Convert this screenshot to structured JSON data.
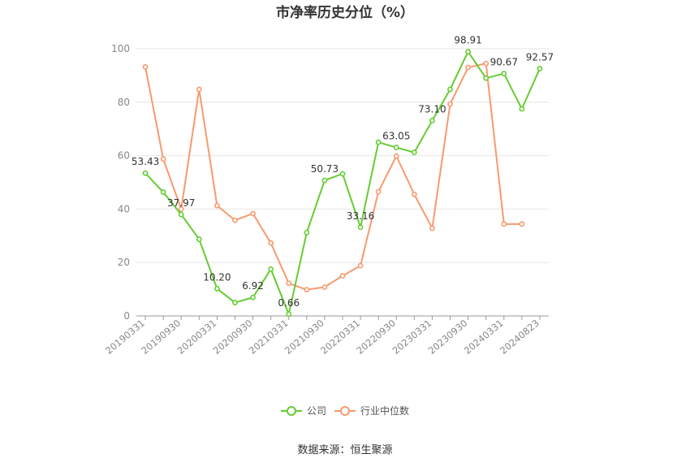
{
  "chart_data": {
    "type": "line",
    "title": "市净率历史分位（%）",
    "xlabel": "",
    "ylabel": "",
    "ylim": [
      0,
      100
    ],
    "yticks": [
      0,
      20,
      40,
      60,
      80,
      100
    ],
    "x": [
      "20190331",
      "20190630",
      "20190930",
      "20191231",
      "20200331",
      "20200630",
      "20200930",
      "20201231",
      "20210331",
      "20210630",
      "20210930",
      "20211231",
      "20220331",
      "20220630",
      "20220930",
      "20221231",
      "20230331",
      "20230630",
      "20230930",
      "20231231",
      "20240331",
      "20240630",
      "20240823"
    ],
    "x_tick_labels": [
      "20190331",
      "20190930",
      "20200331",
      "20200930",
      "20210331",
      "20210930",
      "20220331",
      "20220930",
      "20230331",
      "20230930",
      "20240331",
      "20240823"
    ],
    "series": [
      {
        "name": "公司",
        "color": "#66cc33",
        "values": [
          53.43,
          46.3,
          37.97,
          28.7,
          10.2,
          5.0,
          6.92,
          17.5,
          0.66,
          31.2,
          50.73,
          53.2,
          33.16,
          65.0,
          63.05,
          61.2,
          73.1,
          84.8,
          98.91,
          89.0,
          90.67,
          77.5,
          92.57
        ]
      },
      {
        "name": "行业中位数",
        "color": "#f79a6e",
        "values": [
          93.2,
          58.7,
          40.0,
          84.8,
          41.3,
          35.8,
          38.3,
          27.3,
          12.2,
          9.8,
          10.8,
          15.0,
          18.8,
          46.5,
          59.8,
          45.5,
          32.8,
          79.3,
          93.0,
          94.5,
          34.4,
          34.4,
          null
        ]
      }
    ],
    "data_labels": [
      {
        "series": 0,
        "index": 0,
        "text": "53.43"
      },
      {
        "series": 0,
        "index": 2,
        "text": "37.97"
      },
      {
        "series": 0,
        "index": 4,
        "text": "10.20"
      },
      {
        "series": 0,
        "index": 6,
        "text": "6.92"
      },
      {
        "series": 0,
        "index": 8,
        "text": "0.66"
      },
      {
        "series": 0,
        "index": 10,
        "text": "50.73"
      },
      {
        "series": 0,
        "index": 12,
        "text": "33.16"
      },
      {
        "series": 0,
        "index": 14,
        "text": "63.05"
      },
      {
        "series": 0,
        "index": 16,
        "text": "73.10"
      },
      {
        "series": 0,
        "index": 18,
        "text": "98.91"
      },
      {
        "series": 0,
        "index": 20,
        "text": "90.67"
      },
      {
        "series": 0,
        "index": 22,
        "text": "92.57"
      }
    ],
    "grid": true,
    "legend_position": "bottom-center"
  },
  "legend": [
    {
      "label": "公司",
      "color": "#66cc33"
    },
    {
      "label": "行业中位数",
      "color": "#f79a6e"
    }
  ],
  "source": "数据来源：恒生聚源"
}
